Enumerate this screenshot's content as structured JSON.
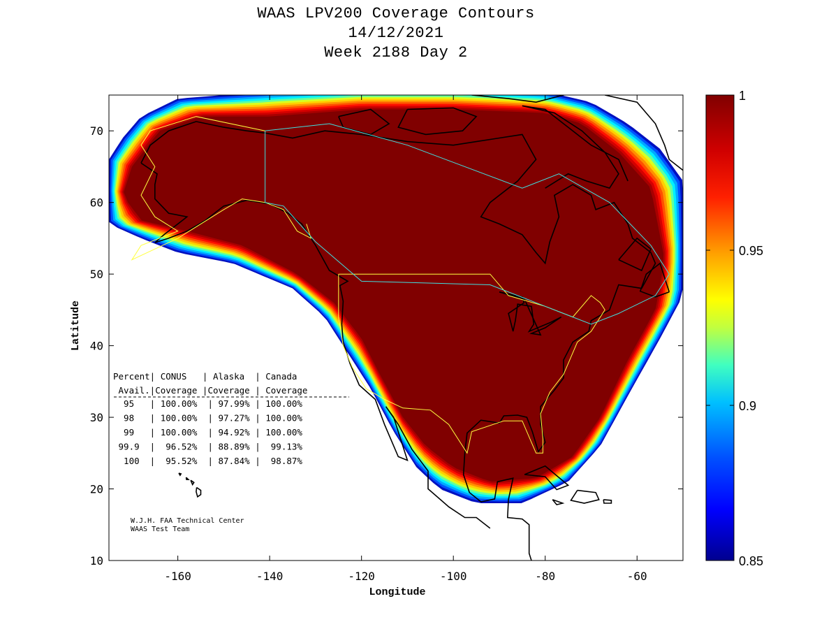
{
  "title_lines": [
    "WAAS LPV200 Coverage Contours",
    "14/12/2021",
    "Week 2188 Day 2"
  ],
  "chart_data": {
    "type": "heatmap",
    "projection": "equirectangular",
    "xlabel": "Longitude",
    "ylabel": "Latitude",
    "xlim": [
      -175,
      -50
    ],
    "ylim": [
      10,
      75
    ],
    "xticks": [
      -160,
      -140,
      -120,
      -100,
      -80,
      -60
    ],
    "yticks": [
      10,
      20,
      30,
      40,
      50,
      60,
      70
    ],
    "colorbar": {
      "range": [
        0.85,
        1
      ],
      "ticks": [
        0.85,
        0.9,
        0.95,
        1
      ],
      "tick_labels": [
        "0.85",
        "0.9",
        "0.95",
        "1"
      ],
      "colormap": [
        "#00008f",
        "#0000ff",
        "#0080ff",
        "#00ffff",
        "#80ff80",
        "#ffff00",
        "#ff8000",
        "#ff0000",
        "#800000"
      ]
    },
    "coverage_band": {
      "outer": [
        [
          -175,
          66
        ],
        [
          -172,
          69
        ],
        [
          -168,
          72
        ],
        [
          -160,
          74.5
        ],
        [
          -150,
          75
        ],
        [
          -140,
          75.5
        ],
        [
          -120,
          76
        ],
        [
          -100,
          76
        ],
        [
          -80,
          75.5
        ],
        [
          -70,
          74
        ],
        [
          -62,
          71
        ],
        [
          -55,
          67.5
        ],
        [
          -50,
          63
        ],
        [
          -50,
          47
        ],
        [
          -55,
          41
        ],
        [
          -62,
          33
        ],
        [
          -68,
          26
        ],
        [
          -75,
          21
        ],
        [
          -85,
          18
        ],
        [
          -95,
          18
        ],
        [
          -103,
          20
        ],
        [
          -108,
          23
        ],
        [
          -113,
          28
        ],
        [
          -118,
          34
        ],
        [
          -123,
          39
        ],
        [
          -128,
          44
        ],
        [
          -135,
          48
        ],
        [
          -148,
          51.5
        ],
        [
          -160,
          53
        ],
        [
          -168,
          55
        ],
        [
          -175,
          57
        ]
      ],
      "inner": [
        [
          -170,
          65
        ],
        [
          -164,
          70
        ],
        [
          -155,
          72
        ],
        [
          -140,
          72
        ],
        [
          -120,
          73
        ],
        [
          -100,
          73
        ],
        [
          -80,
          72.5
        ],
        [
          -72,
          71
        ],
        [
          -64,
          67
        ],
        [
          -57,
          62
        ],
        [
          -54,
          52
        ],
        [
          -56,
          45
        ],
        [
          -62,
          38
        ],
        [
          -68,
          30
        ],
        [
          -74,
          24.5
        ],
        [
          -82,
          21.5
        ],
        [
          -92,
          21
        ],
        [
          -100,
          23
        ],
        [
          -106,
          26
        ],
        [
          -111,
          30
        ],
        [
          -116,
          36
        ],
        [
          -120,
          41
        ],
        [
          -126,
          46
        ],
        [
          -134,
          50
        ],
        [
          -146,
          54
        ],
        [
          -158,
          56
        ],
        [
          -168,
          57.5
        ],
        [
          -172,
          61
        ]
      ]
    },
    "table": {
      "headers": [
        "Percent| CONUS   | Alaska  | Canada",
        " Avail.|Coverage |Coverage | Coverage"
      ],
      "rows": [
        [
          "95",
          "100.00%",
          "97.99%",
          "100.00%"
        ],
        [
          "98",
          "100.00%",
          "97.27%",
          "100.00%"
        ],
        [
          "99",
          "100.00%",
          "94.92%",
          "100.00%"
        ],
        [
          "99.9",
          "96.52%",
          "88.89%",
          "99.13%"
        ],
        [
          "100",
          "95.52%",
          "87.84%",
          "98.87%"
        ]
      ]
    },
    "credits": [
      "W.J.H. FAA Technical Center",
      "WAAS Test Team"
    ]
  }
}
